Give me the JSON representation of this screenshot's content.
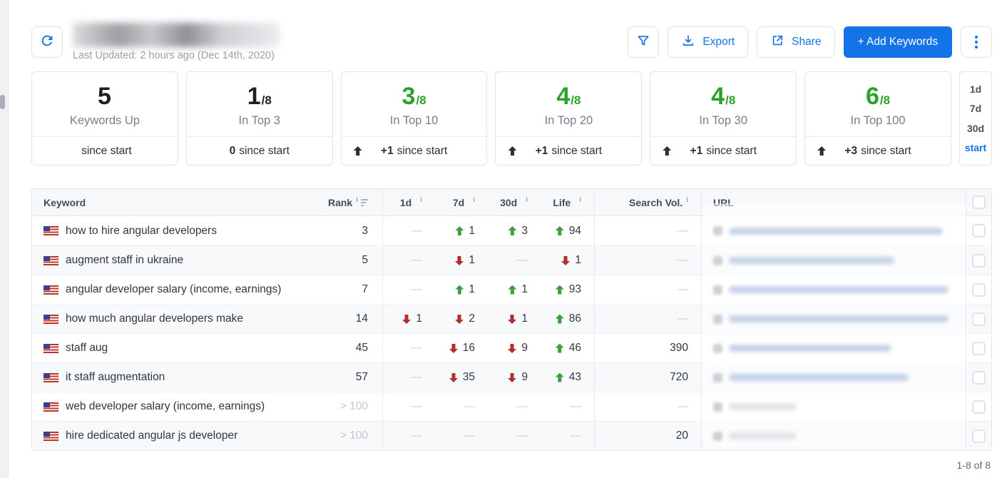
{
  "header": {
    "last_updated": "Last Updated: 2 hours ago (Dec 14th, 2020)",
    "export_label": "Export",
    "share_label": "Share",
    "add_keywords_label": "+ Add Keywords"
  },
  "colors": {
    "accent_blue": "#1473e6",
    "positive_green": "#2aa22a",
    "arrow_green": "#3f9e3f",
    "arrow_red": "#b03030"
  },
  "icons": {
    "refresh": "refresh-icon",
    "filter": "filter-funnel-icon",
    "export": "download-icon",
    "share": "share-icon",
    "more": "kebab-menu-icon"
  },
  "stats": [
    {
      "value": "5",
      "denominator": "",
      "label": "Keywords Up",
      "green": false,
      "arrow": false,
      "change_bold": "",
      "change_text": "since start"
    },
    {
      "value": "1",
      "denominator": "/8",
      "label": "In Top 3",
      "green": false,
      "arrow": false,
      "change_bold": "0",
      "change_text": "since start"
    },
    {
      "value": "3",
      "denominator": "/8",
      "label": "In Top 10",
      "green": true,
      "arrow": true,
      "change_bold": "+1",
      "change_text": "since start"
    },
    {
      "value": "4",
      "denominator": "/8",
      "label": "In Top 20",
      "green": true,
      "arrow": true,
      "change_bold": "+1",
      "change_text": "since start"
    },
    {
      "value": "4",
      "denominator": "/8",
      "label": "In Top 30",
      "green": true,
      "arrow": true,
      "change_bold": "+1",
      "change_text": "since start"
    },
    {
      "value": "6",
      "denominator": "/8",
      "label": "In Top 100",
      "green": true,
      "arrow": true,
      "change_bold": "+3",
      "change_text": "since start"
    }
  ],
  "period_selector": {
    "options": [
      "1d",
      "7d",
      "30d",
      "start"
    ],
    "selected": "start"
  },
  "table": {
    "dash": "—",
    "columns": {
      "keyword": "Keyword",
      "rank": "Rank",
      "d1": "1d",
      "d7": "7d",
      "d30": "30d",
      "life": "Life",
      "search_vol": "Search Vol.",
      "url": "URL"
    },
    "rows": [
      {
        "keyword": "how to hire angular developers",
        "rank": "3",
        "rank_muted": false,
        "d1": null,
        "d7": {
          "dir": "up",
          "val": "1"
        },
        "d30": {
          "dir": "up",
          "val": "3"
        },
        "life": {
          "dir": "up",
          "val": "94"
        },
        "search_vol": "",
        "url_kind": "link",
        "url_width": 300
      },
      {
        "keyword": "augment staff in ukraine",
        "rank": "5",
        "rank_muted": false,
        "d1": null,
        "d7": {
          "dir": "down",
          "val": "1"
        },
        "d30": null,
        "life": {
          "dir": "down",
          "val": "1"
        },
        "search_vol": "",
        "url_kind": "link",
        "url_width": 232
      },
      {
        "keyword": "angular developer salary (income, earnings)",
        "rank": "7",
        "rank_muted": false,
        "d1": null,
        "d7": {
          "dir": "up",
          "val": "1"
        },
        "d30": {
          "dir": "up",
          "val": "1"
        },
        "life": {
          "dir": "up",
          "val": "93"
        },
        "search_vol": "",
        "url_kind": "link",
        "url_width": 308
      },
      {
        "keyword": "how much angular developers make",
        "rank": "14",
        "rank_muted": false,
        "d1": {
          "dir": "down",
          "val": "1"
        },
        "d7": {
          "dir": "down",
          "val": "2"
        },
        "d30": {
          "dir": "down",
          "val": "1"
        },
        "life": {
          "dir": "up",
          "val": "86"
        },
        "search_vol": "",
        "url_kind": "link",
        "url_width": 308
      },
      {
        "keyword": "staff aug",
        "rank": "45",
        "rank_muted": false,
        "d1": null,
        "d7": {
          "dir": "down",
          "val": "16"
        },
        "d30": {
          "dir": "down",
          "val": "9"
        },
        "life": {
          "dir": "up",
          "val": "46"
        },
        "search_vol": "390",
        "url_kind": "link",
        "url_width": 228
      },
      {
        "keyword": "it staff augmentation",
        "rank": "57",
        "rank_muted": false,
        "d1": null,
        "d7": {
          "dir": "down",
          "val": "35"
        },
        "d30": {
          "dir": "down",
          "val": "9"
        },
        "life": {
          "dir": "up",
          "val": "43"
        },
        "search_vol": "720",
        "url_kind": "link",
        "url_width": 252
      },
      {
        "keyword": "web developer salary (income, earnings)",
        "rank": "> 100",
        "rank_muted": true,
        "d1": null,
        "d7": null,
        "d30": null,
        "life": null,
        "search_vol": "",
        "url_kind": "gray",
        "url_width": 95
      },
      {
        "keyword": "hire dedicated angular js developer",
        "rank": "> 100",
        "rank_muted": true,
        "d1": null,
        "d7": null,
        "d30": null,
        "life": null,
        "search_vol": "20",
        "url_kind": "gray",
        "url_width": 95
      }
    ]
  },
  "footer": {
    "pagination": "1-8 of 8"
  }
}
